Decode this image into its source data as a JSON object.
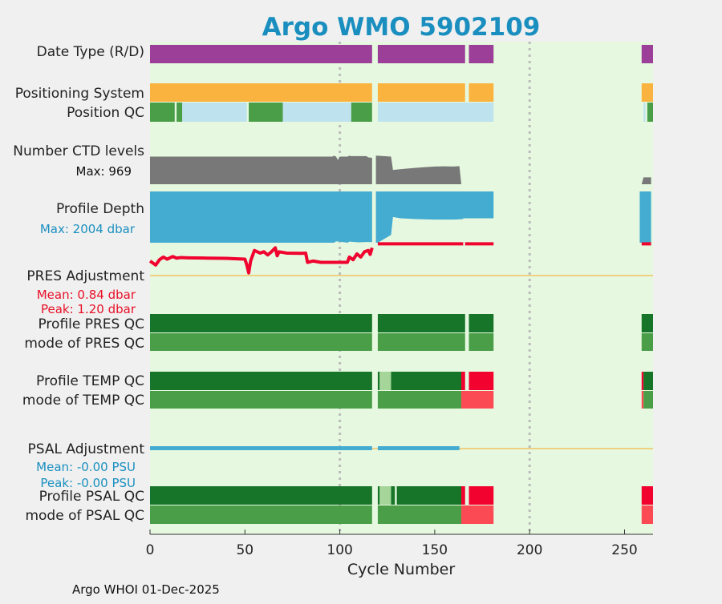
{
  "chart_data": {
    "type": "status-timeline",
    "title": "Argo WMO 5902109",
    "xlabel": "Cycle Number",
    "xlim": [
      0,
      265
    ],
    "xticks": [
      0,
      50,
      100,
      150,
      200,
      250
    ],
    "reference_cycles": [
      100,
      200
    ],
    "footer": "Argo WHOI 01-Dec-2025",
    "colors": {
      "background": "#f0f0f0",
      "plot_bg": "#e6f9e0",
      "title": "#1a8fbf",
      "date_type": "#9b3f98",
      "positioning": "#fbb33f",
      "qc_good": "#4a9e48",
      "qc_light": "#bfe2ef",
      "qc_dark": "#167529",
      "qc_bad": "#f2022e",
      "qc_bad_light": "#fc4a54",
      "qc_pale": "#a6d59a",
      "ctd": "#787878",
      "depth": "#44abd1",
      "pres_adj": "#f0032e",
      "psal_adj": "#44abd1",
      "zero_line": "#f2c260",
      "mean_text": "#e81028",
      "psal_text": "#1a8fbf"
    },
    "row_labels": {
      "date_type": "Date Type (R/D)",
      "positioning": "Positioning System",
      "position_qc": "Position QC",
      "ctd_levels": "Number CTD levels",
      "ctd_max": "Max: 969",
      "profile_depth": "Profile Depth",
      "depth_max": "Max: 2004 dbar",
      "pres_adj": "PRES Adjustment",
      "pres_mean": "Mean: 0.84 dbar",
      "pres_peak": "Peak: 1.20 dbar",
      "profile_pres_qc": "Profile PRES QC",
      "mode_pres_qc": "mode of PRES QC",
      "profile_temp_qc": "Profile TEMP QC",
      "mode_temp_qc": "mode of TEMP QC",
      "psal_adj": "PSAL Adjustment",
      "psal_mean": "Mean: -0.00 PSU",
      "psal_peak": "Peak: -0.00 PSU",
      "profile_psal_qc": "Profile PSAL QC",
      "mode_psal_qc": "mode of PSAL QC"
    },
    "present_ranges": [
      [
        1,
        117
      ],
      [
        120,
        165
      ],
      [
        166,
        181
      ],
      [
        259,
        264
      ]
    ],
    "segments": {
      "date_type": [
        [
          0,
          117,
          "date_type"
        ],
        [
          120,
          166,
          "date_type"
        ],
        [
          168,
          181,
          "date_type"
        ],
        [
          259,
          265,
          "date_type"
        ]
      ],
      "positioning": [
        [
          0,
          117,
          "positioning"
        ],
        [
          120,
          166,
          "positioning"
        ],
        [
          168,
          181,
          "positioning"
        ],
        [
          259,
          265,
          "positioning"
        ]
      ],
      "position_qc": [
        [
          0,
          13,
          "qc_good"
        ],
        [
          14,
          17,
          "qc_good"
        ],
        [
          17,
          51,
          "qc_light"
        ],
        [
          52,
          70,
          "qc_good"
        ],
        [
          70,
          106,
          "qc_light"
        ],
        [
          106,
          117,
          "qc_good"
        ],
        [
          120,
          181,
          "qc_light"
        ],
        [
          260,
          261,
          "qc_light"
        ],
        [
          262,
          265,
          "qc_good"
        ]
      ],
      "profile_pres_qc": [
        [
          0,
          117,
          "qc_dark"
        ],
        [
          120,
          166,
          "qc_dark"
        ],
        [
          168,
          181,
          "qc_dark"
        ],
        [
          259,
          265,
          "qc_dark"
        ]
      ],
      "mode_pres_qc": [
        [
          0,
          117,
          "qc_good"
        ],
        [
          120,
          166,
          "qc_good"
        ],
        [
          168,
          181,
          "qc_good"
        ],
        [
          259,
          265,
          "qc_good"
        ]
      ],
      "profile_temp_qc": [
        [
          0,
          117,
          "qc_dark"
        ],
        [
          120,
          121,
          "qc_dark"
        ],
        [
          121,
          127,
          "qc_pale"
        ],
        [
          127,
          164,
          "qc_dark"
        ],
        [
          164,
          166,
          "qc_bad"
        ],
        [
          168,
          181,
          "qc_bad"
        ],
        [
          259,
          260,
          "qc_bad"
        ],
        [
          260,
          265,
          "qc_dark"
        ]
      ],
      "mode_temp_qc": [
        [
          0,
          117,
          "qc_good"
        ],
        [
          120,
          164,
          "qc_good"
        ],
        [
          164,
          181,
          "qc_bad_light"
        ],
        [
          259,
          260,
          "qc_bad_light"
        ],
        [
          260,
          265,
          "qc_good"
        ]
      ],
      "profile_psal_qc": [
        [
          0,
          117,
          "qc_dark"
        ],
        [
          120,
          121,
          "qc_dark"
        ],
        [
          121,
          127,
          "qc_pale"
        ],
        [
          127,
          129,
          "qc_dark"
        ],
        [
          130,
          164,
          "qc_dark"
        ],
        [
          164,
          166,
          "qc_bad"
        ],
        [
          168,
          181,
          "qc_bad"
        ],
        [
          259,
          265,
          "qc_bad"
        ]
      ],
      "mode_psal_qc": [
        [
          0,
          117,
          "qc_good"
        ],
        [
          120,
          164,
          "qc_good"
        ],
        [
          164,
          181,
          "qc_bad_light"
        ],
        [
          259,
          265,
          "qc_bad_light"
        ]
      ]
    },
    "ctd_levels": {
      "max": 969,
      "points": [
        [
          0,
          640
        ],
        [
          96,
          640
        ],
        [
          97,
          660
        ],
        [
          98,
          640
        ],
        [
          99,
          560
        ],
        [
          100,
          640
        ],
        [
          104,
          640
        ],
        [
          105,
          660
        ],
        [
          106,
          650
        ],
        [
          114,
          650
        ],
        [
          115,
          620
        ],
        [
          117,
          610
        ],
        [
          120,
          660
        ],
        [
          127,
          640
        ],
        [
          128,
          330
        ],
        [
          135,
          360
        ],
        [
          140,
          380
        ],
        [
          145,
          395
        ],
        [
          150,
          410
        ],
        [
          155,
          415
        ],
        [
          160,
          410
        ],
        [
          163,
          420
        ],
        [
          164,
          0
        ],
        [
          259,
          0
        ],
        [
          260,
          160
        ],
        [
          264,
          160
        ]
      ]
    },
    "profile_depth": {
      "max": 2004,
      "points": [
        [
          0,
          2004
        ],
        [
          97,
          2004
        ],
        [
          98,
          1950
        ],
        [
          102,
          1980
        ],
        [
          104,
          2004
        ],
        [
          105,
          1960
        ],
        [
          110,
          1990
        ],
        [
          114,
          1975
        ],
        [
          117,
          1980
        ],
        [
          120,
          2004
        ],
        [
          127,
          1700
        ],
        [
          128,
          1000
        ],
        [
          132,
          1050
        ],
        [
          140,
          1080
        ],
        [
          150,
          1100
        ],
        [
          160,
          1100
        ],
        [
          165,
          1080
        ],
        [
          166,
          1050
        ],
        [
          181,
          1050
        ],
        [
          259,
          2004
        ],
        [
          264,
          2004
        ]
      ]
    },
    "pres_adjustment": {
      "mean": 0.84,
      "peak": 1.2,
      "points": [
        [
          0,
          0.55
        ],
        [
          3,
          0.4
        ],
        [
          5,
          0.6
        ],
        [
          7,
          0.7
        ],
        [
          9,
          0.62
        ],
        [
          12,
          0.72
        ],
        [
          14,
          0.66
        ],
        [
          16,
          0.68
        ],
        [
          20,
          0.67
        ],
        [
          30,
          0.66
        ],
        [
          40,
          0.65
        ],
        [
          50,
          0.62
        ],
        [
          51,
          0.4
        ],
        [
          52,
          0.1
        ],
        [
          53,
          0.55
        ],
        [
          55,
          0.95
        ],
        [
          58,
          0.85
        ],
        [
          60,
          0.9
        ],
        [
          62,
          0.78
        ],
        [
          64,
          0.9
        ],
        [
          66,
          1.05
        ],
        [
          67,
          0.75
        ],
        [
          68,
          0.9
        ],
        [
          72,
          0.85
        ],
        [
          80,
          0.84
        ],
        [
          82,
          0.85
        ],
        [
          83,
          0.5
        ],
        [
          86,
          0.55
        ],
        [
          90,
          0.5
        ],
        [
          95,
          0.5
        ],
        [
          100,
          0.5
        ],
        [
          104,
          0.5
        ],
        [
          105,
          0.7
        ],
        [
          107,
          0.6
        ],
        [
          109,
          0.82
        ],
        [
          111,
          0.7
        ],
        [
          113,
          0.9
        ],
        [
          115,
          0.95
        ],
        [
          116,
          0.8
        ],
        [
          117,
          1.05
        ],
        [
          120,
          1.2
        ],
        [
          166,
          1.2
        ],
        [
          168,
          1.2
        ],
        [
          181,
          1.2
        ],
        [
          259,
          1.2
        ],
        [
          264,
          1.2
        ]
      ]
    },
    "psal_adjustment": {
      "mean": -0.0,
      "peak": -0.0,
      "ranges": [
        [
          0,
          117
        ],
        [
          120,
          163
        ]
      ]
    }
  }
}
